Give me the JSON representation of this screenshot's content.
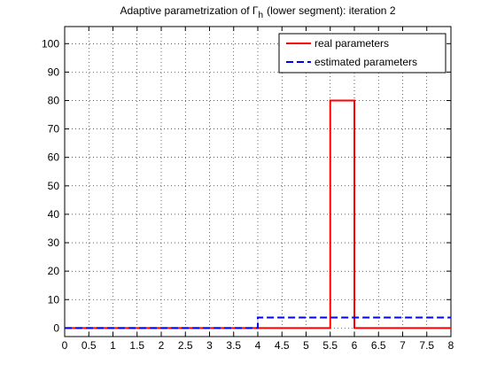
{
  "chart_data": {
    "type": "line",
    "title": {
      "text": "Adaptive parametrization of Γ",
      "subscript": "h",
      "rest": "(lower segment): iteration 2"
    },
    "series": [
      {
        "name": "real parameters",
        "color": "#ff0000",
        "dash": "solid",
        "x": [
          0,
          5.5,
          5.5,
          6,
          6,
          8
        ],
        "values": [
          0,
          0,
          80,
          80,
          0,
          0
        ]
      },
      {
        "name": "estimated parameters",
        "color": "#0000ff",
        "dash": "dashed",
        "x": [
          0,
          4,
          4,
          8
        ],
        "values": [
          0,
          0,
          3.7,
          3.7
        ]
      }
    ],
    "xlim": [
      0,
      8
    ],
    "xticks": [
      0,
      0.5,
      1,
      1.5,
      2,
      2.5,
      3,
      3.5,
      4,
      4.5,
      5,
      5.5,
      6,
      6.5,
      7,
      7.5,
      8
    ],
    "ylim": [
      -3,
      106
    ],
    "yticks": [
      0,
      10,
      20,
      30,
      40,
      50,
      60,
      70,
      80,
      90,
      100
    ],
    "grid": true,
    "legend": "top-right"
  }
}
